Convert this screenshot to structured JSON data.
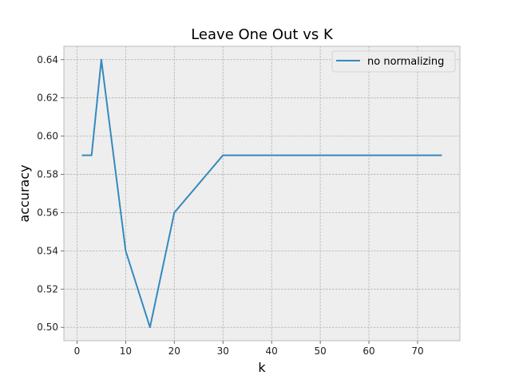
{
  "chart_data": {
    "type": "line",
    "title": "Leave One Out vs K",
    "xlabel": "k",
    "ylabel": "accuracy",
    "xlim": [
      -2.7,
      78.7
    ],
    "ylim": [
      0.493,
      0.647
    ],
    "xticks": [
      0,
      10,
      20,
      30,
      40,
      50,
      60,
      70
    ],
    "xtick_labels": [
      "0",
      "10",
      "20",
      "30",
      "40",
      "50",
      "60",
      "70"
    ],
    "yticks": [
      0.5,
      0.52,
      0.54,
      0.56,
      0.58,
      0.6,
      0.62,
      0.64
    ],
    "ytick_labels": [
      "0.50",
      "0.52",
      "0.54",
      "0.56",
      "0.58",
      "0.60",
      "0.62",
      "0.64"
    ],
    "grid": true,
    "legend_position": "upper-right",
    "series": [
      {
        "name": "no normalizing",
        "color": "#348abd",
        "x": [
          1,
          3,
          5,
          10,
          15,
          20,
          30,
          75
        ],
        "y": [
          0.59,
          0.59,
          0.64,
          0.54,
          0.5,
          0.56,
          0.59,
          0.59
        ]
      }
    ]
  },
  "colors": {
    "plot_background": "#eeeeee",
    "plot_border": "#bcbcbc",
    "grid": "#b0b0b0"
  }
}
